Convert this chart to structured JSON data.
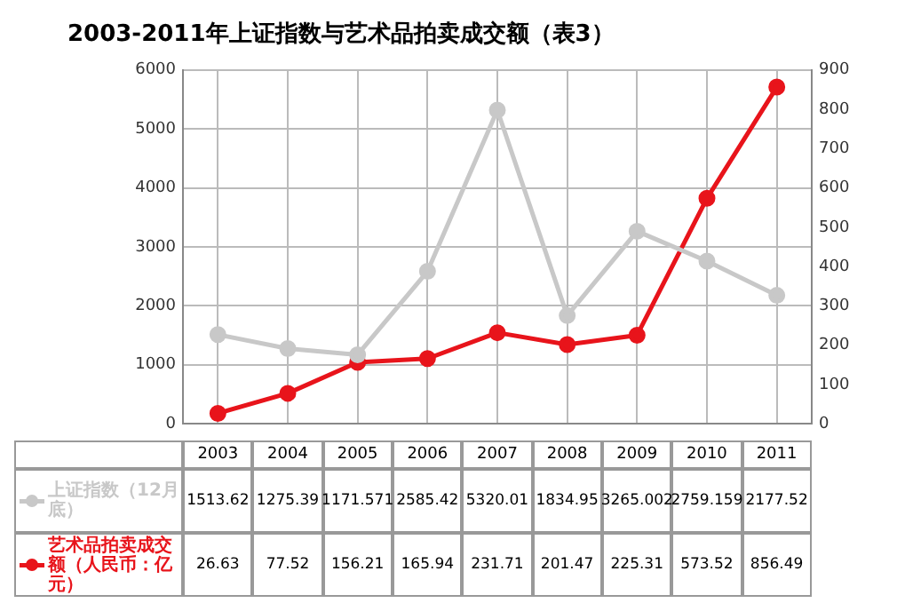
{
  "chart_data": {
    "type": "line",
    "title": "2003-2011年上证指数与艺术品拍卖成交额（表3）",
    "categories": [
      "2003",
      "2004",
      "2005",
      "2006",
      "2007",
      "2008",
      "2009",
      "2010",
      "2011"
    ],
    "series": [
      {
        "name": "上证指数（12月底）",
        "color": "#c8c8c8",
        "values": [
          1513.62,
          1275.39,
          1171.571,
          2585.42,
          5320.01,
          1834.95,
          3265.002,
          2759.159,
          2177.52
        ],
        "value_labels": [
          "1513.62",
          "1275.39",
          "1171.571",
          "2585.42",
          "5320.01",
          "1834.95",
          "3265.002",
          "2759.159",
          "2177.52"
        ]
      },
      {
        "name": "艺术品拍卖成交额（人民币：亿元）",
        "color": "#e8141b",
        "axis": "y2",
        "values": [
          26.63,
          77.52,
          156.21,
          165.94,
          231.71,
          201.47,
          225.31,
          573.52,
          856.49
        ],
        "value_labels": [
          "26.63",
          "77.52",
          "156.21",
          "165.94",
          "231.71",
          "201.47",
          "225.31",
          "573.52",
          "856.49"
        ]
      }
    ],
    "ylim": [
      0,
      6000
    ],
    "yticks": [
      0,
      1000,
      2000,
      3000,
      4000,
      5000,
      6000
    ],
    "y2lim": [
      0,
      900
    ],
    "y2ticks": [
      0,
      100,
      200,
      300,
      400,
      500,
      600,
      700,
      800,
      900
    ],
    "grid": true,
    "legend": "bottom",
    "marker": "circle",
    "line_style": "solid"
  }
}
